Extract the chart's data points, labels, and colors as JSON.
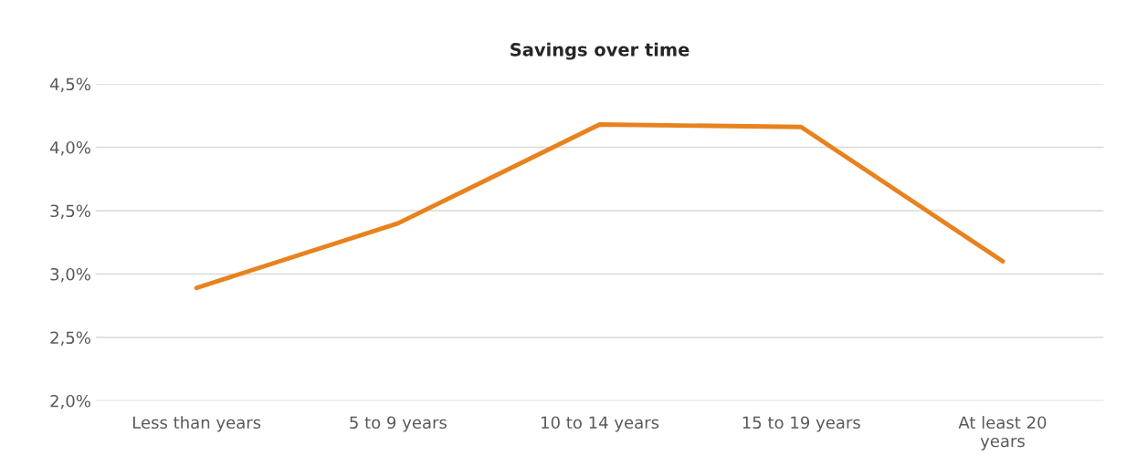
{
  "chart_data": {
    "type": "line",
    "title": "Savings over time",
    "categories": [
      "Less than years",
      "5 to 9 years",
      "10 to 14 years",
      "15 to 19 years",
      "At least 20\nyears"
    ],
    "series": [
      {
        "color": "#e8821e",
        "values": [
          2.89,
          3.4,
          4.18,
          4.16,
          3.1
        ]
      }
    ],
    "ylim": [
      2.0,
      4.5
    ],
    "yticks": [
      {
        "value": 2.0,
        "label": "2,0%"
      },
      {
        "value": 2.5,
        "label": "2,5%"
      },
      {
        "value": 3.0,
        "label": "3,0%"
      },
      {
        "value": 3.5,
        "label": "3,5%"
      },
      {
        "value": 4.0,
        "label": "4,0%"
      },
      {
        "value": 4.5,
        "label": "4,5%"
      }
    ],
    "grid": "y",
    "legend": false,
    "marker": "none",
    "line_style": "solid"
  }
}
